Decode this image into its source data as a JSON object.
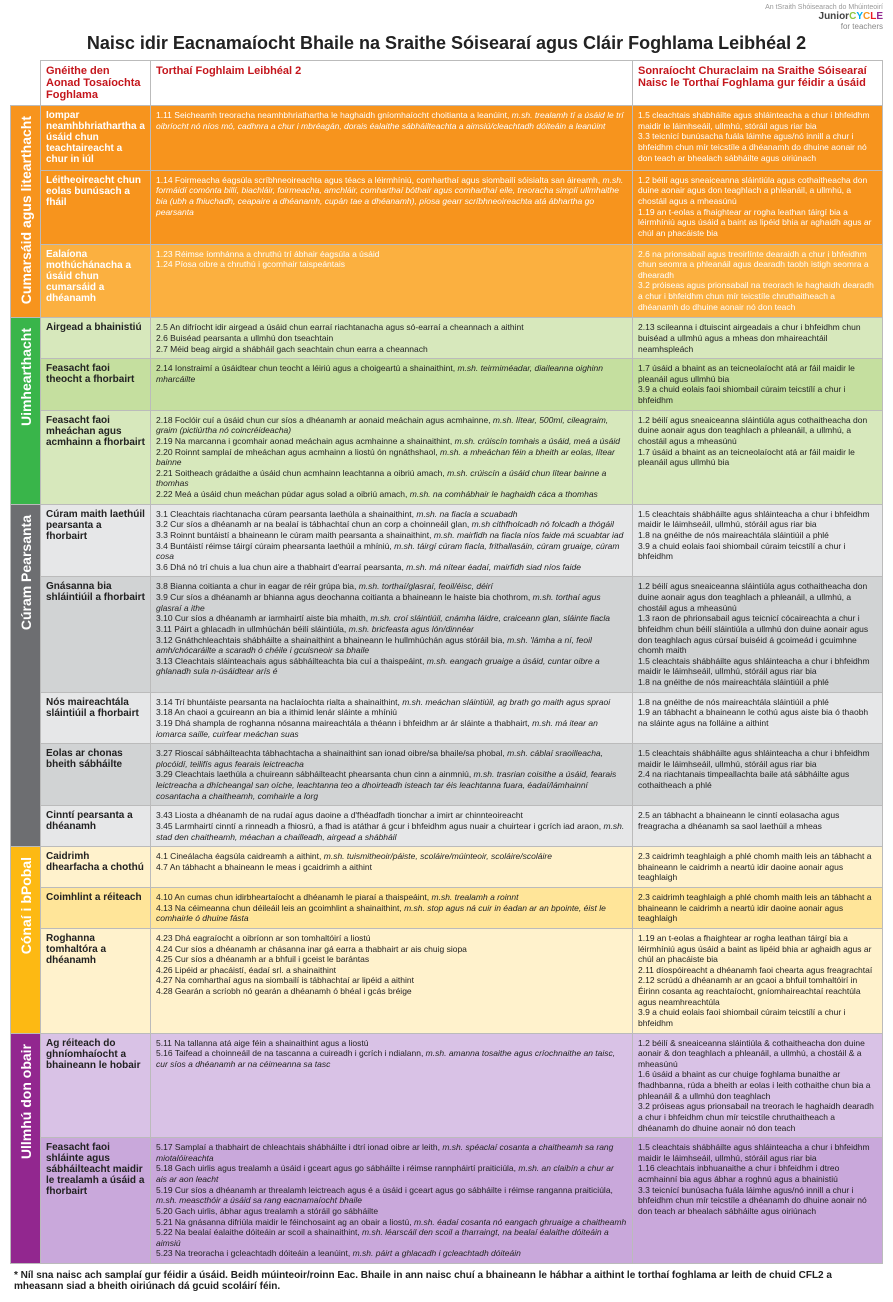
{
  "logo": {
    "top": "An tSraith Shóisearach do Mhúinteoirí",
    "brand": "JuniorCYCLE",
    "sub": "for teachers"
  },
  "title": "Naisc idir Eacnamaíocht Bhaile na Sraithe Sóisearaí agus Cláir Foghlama Leibhéal 2",
  "headers": {
    "gne": "Gnéithe den Aonad Tosaíochta Foghlama",
    "tf": "Torthaí Foghlaim Leibhéal 2",
    "son": "Sonraíocht Churaclaim na Sraithe Sóisearaí Naisc le Torthaí Foghlama gur féidir a úsáid"
  },
  "footnote": "* Níl sna naisc ach samplaí gur féidir a úsáid. Beidh múinteoir/roinn Eac. Bhaile in ann naisc chuí a bhaineann le hábhar a aithint le torthaí foghlama ar leith de chuid CFL2 a mheasann siad a bheith oiriúnach dá gcuid scoláirí féin.",
  "sections": [
    {
      "id": "s1",
      "label": "Cumarsáid agus litearthacht",
      "colors": {
        "side": "#f7941d",
        "rows": [
          "#f7941d",
          "#f7941d",
          "#fbb040"
        ],
        "text": "#ffffff"
      },
      "rows": [
        {
          "gne": "Iompar neamhbhriathartha a úsáid chun teachtaireacht a chur in iúl",
          "tf": "1.11 Seicheamh treoracha neamhbhriathartha le haghaidh gníomhaíocht choitianta a leanúint, <em>m.sh. trealamh tí a úsáid le trí oibríocht nó níos mó, cadhnra a chur i mbréagán, dorais éalaithe sábháilteachta a aimsiú/cleachtadh dóiteáin a leanúint</em>",
          "son": "1.5 cleachtais shábháilte agus shláinteacha a chur i bhfeidhm maidir le láimhseáil, ullmhú, stóráil agus riar bia\n3.3 teicnící bunúsacha fuála láimhe agus/nó innill a chur i bhfeidhm chun mír teicstíle a dhéanamh do dhuine aonair nó don teach ar bhealach sábháilte agus oiriúnach"
        },
        {
          "gne": "Léitheoireacht chun eolas bunúsach a fháil",
          "tf": "1.14 Foirmeacha éagsúla scríbhneoireachta agus téacs a léirmhíniú, comharthaí agus siombailí sóisialta san áireamh, <em>m.sh. formáidí comónta billí, biachláir, foirmeacha, amchláir, comharthaí bóthair agus comharthaí eile, treoracha simplí ullmhaithe bia (ubh a fhiuchadh, ceapaire a dhéanamh, cupán tae a dhéanamh), píosa gearr scríbhneoireachta atá ábhartha go pearsanta</em>",
          "son": "1.2 béilí agus sneaiceanna sláintiúla agus cothaitheacha don duine aonair agus don teaghlach a phleanáil, a ullmhú, a chostáil agus a mheasúnú\n1.19 an t-eolas a fhaightear ar rogha leathan táirgí bia a léirmhíniú agus úsáid a baint as lipéid bhia ar aghaidh agus ar chúl an phacáiste bia"
        },
        {
          "gne": "Ealaíona mothúchánacha a úsáid chun cumarsáid a dhéanamh",
          "tf": "1.23 Réimse íomhánna a chruthú trí ábhair éagsúla a úsáid\n1.24 Píosa oibre a chruthú i gcomhair taispeántais",
          "son": "2.6 na prionsabail agus treoirlínte dearaidh a chur i bhfeidhm chun seomra a phleanáil agus dearadh taobh istigh seomra a dhearadh\n3.2 próiseas agus prionsabail na treorach le haghaidh dearadh a chur i bhfeidhm chun mír teicstíle chruthaitheach a dhéanamh do dhuine aonair nó don teach"
        }
      ]
    },
    {
      "id": "s2",
      "label": "Uimhearthacht",
      "colors": {
        "side": "#39b54a",
        "rows": [
          "#d7e8bc",
          "#c5df9f",
          "#d7e8bc"
        ],
        "text": "#222222"
      },
      "rows": [
        {
          "gne": "Airgead a bhainistiú",
          "tf": "2.5 An difríocht idir airgead a úsáid chun earraí riachtanacha agus só-earraí a cheannach a aithint\n2.6 Buiséad pearsanta a ullmhú don tseachtain\n2.7 Méid beag airgid a shábháil gach seachtain chun earra a cheannach",
          "son": "2.13 scileanna i dtuiscint airgeadais a chur i bhfeidhm chun buiséad a ullmhú agus a mheas don mhaireachtáil neamhspleách"
        },
        {
          "gne": "Feasacht faoi theocht a fhorbairt",
          "tf": "2.14 Ionstraimí a úsáidtear chun teocht a léiriú agus a choigeartú a shainaithint, <em>m.sh. teirmiméadar, diaileanna oighinn mharcáilte</em>",
          "son": "1.7 úsáid a bhaint as an teicneolaíocht atá ar fáil maidir le pleanáil agus ullmhú bia\n3.9 a chuid eolais faoi shiombail cúraim teicstílí a chur i bhfeidhm"
        },
        {
          "gne": "Feasacht faoi mheáchan agus acmhainn a fhorbairt",
          "tf": "2.18 Foclóir cuí a úsáid chun cur síos a dhéanamh ar aonaid meáchain agus acmhainne, <em>m.sh. lítear, 500ml, cileagraim, graim (pictiúrtha nó coincréideacha)</em>\n2.19 Na marcanna i gcomhair aonad meáchain agus acmhainne a shainaithint, <em>m.sh. crúiscín tomhais a úsáid, meá a úsáid</em>\n2.20 Roinnt samplaí de mheáchan agus acmhainn a liostú ón ngnáthshaol, <em>m.sh. a mheáchan féin a bheith ar eolas, lítear bainne</em>\n2.21 Soitheach grádaithe a úsáid chun acmhainn leachtanna a oibriú amach, <em>m.sh. crúiscín a úsáid chun lítear bainne a thomhas</em>\n2.22 Meá a úsáid chun meáchan púdar agus solad a oibriú amach, <em>m.sh. na comhábhair le haghaidh cáca a thomhas</em>",
          "son": "1.2 béilí agus sneaiceanna sláintiúla agus cothaitheacha don duine aonair agus don teaghlach a phleanáil, a ullmhú, a chostáil agus a mheasúnú\n1.7 úsáid a bhaint as an teicneolaíocht atá ar fáil maidir le pleanáil agus ullmhú bia"
        }
      ]
    },
    {
      "id": "s3",
      "label": "Cúram Pearsanta",
      "colors": {
        "side": "#6d6e71",
        "rows": [
          "#e6e7e8",
          "#d1d3d4",
          "#e6e7e8",
          "#d1d3d4",
          "#e6e7e8"
        ],
        "text": "#222222"
      },
      "rows": [
        {
          "gne": "Cúram maith laethúil pearsanta a fhorbairt",
          "tf": "3.1 Cleachtais riachtanacha cúram pearsanta laethúla a shainaithint, <em>m.sh. na fiacla a scuabadh</em>\n3.2 Cur síos a dhéanamh ar na bealaí is tábhachtaí chun an corp a choinneáil glan, <em>m.sh cithfholcadh nó folcadh a thógáil</em>\n3.3 Roinnt buntáistí a bhaineann le cúram maith pearsanta a shainaithint, <em>m.sh. mairfidh na fiacla níos faide má scuabtar iad</em>\n3.4 Buntáistí réimse táirgí cúraim phearsanta laethúil a mhíniú, <em>m.sh. táirgí cúram fiacla, frithallasáin, cúram gruaige, cúram cosa</em>\n3.6 Dhá nó trí chuis a lua chun aire a thabhairt d'earraí pearsanta, <em>m.sh. má nítear éadaí, mairfidh siad níos faide</em>",
          "son": "1.5 cleachtais shábháilte agus shláinteacha a chur i bhfeidhm maidir le láimhseáil, ullmhú, stóráil agus riar bia\n1.8 na gnéithe de nós maireachtála sláintiúil a phlé\n3.9 a chuid eolais faoi shiombail cúraim teicstílí a chur i bhfeidhm"
        },
        {
          "gne": "Gnásanna bia shláintiúil a fhorbairt",
          "tf": "3.8 Bianna coitianta a chur in eagar de réir grúpa bia, <em>m.sh. torthaí/glasraí, feoil/éisc, déirí</em>\n3.9 Cur síos a dhéanamh ar bhianna agus deochanna coitianta a bhaineann le haiste bia chothrom, <em>m.sh. torthaí agus glasraí a ithe</em>\n3.10 Cur síos a dhéanamh ar iarmhairtí aiste bia mhaith, <em>m.sh. croí sláintiúil, cnámha láidre, craiceann glan, sláinte fiacla</em>\n3.11 Páirt a ghlacadh in ullmhúchán béilí sláintiúla, <em>m.sh. bricfeasta agus lón/dinnéar</em>\n3.12 Gnáthchleachtais shábháilte a shainaithint a bhaineann le hullmhúchán agus stóráil bia, <em>m.sh. 'lámha a ní, feoil amh/chócaráilte a scaradh ó chéile i gcuisneoir sa bhaile</em>\n3.13 Cleachtais sláinteachais agus sábháilteachta bia cuí a thaispeáint, <em>m.sh. eangach gruaige a úsáid, cuntar oibre a ghlanadh sula n-úsáidtear arís é</em>",
          "son": "1.2 béilí agus sneaiceanna sláintiúla agus cothaitheacha don duine aonair agus don teaghlach a phleanáil, a ullmhú, a chostáil agus a mheasúnú\n1.3 raon de phrionsabail agus teicnicí cócaireachta a chur i bhfeidhm chun béilí sláintiúla a ullmhú don duine aonair agus don teaghlach agus cúrsaí buiséid á gcoimeád i gcuimhne chomh maith\n1.5 cleachtais shábháilte agus shláinteacha a chur i bhfeidhm maidir le láimhseáil, ullmhú, stóráil agus riar bia\n1.8 na gnéithe de nós maireachtála sláintiúil a phlé"
        },
        {
          "gne": "Nós maireachtála sláintiúil a fhorbairt",
          "tf": "3.14 Trí bhuntáiste pearsanta na haclaíochta rialta a shainaithint, <em>m.sh. meáchan sláintiúil, ag brath go maith agus spraoi</em>\n3.18 An chaoi a gcuireann an bia a ithimid lenár sláinte a mhíniú\n3.19 Dhá shampla de roghanna nósanna maireachtála a théann i bhfeidhm ar ár sláinte a thabhairt, <em>m.sh. má itear an iomarca saille, cuirfear meáchan suas</em>",
          "son": "1.8 na gnéithe de nós maireachtála sláintiúil a phlé\n1.9 an tábhacht a bhaineann le cothú agus aiste bia ó thaobh na sláinte agus na folláine a aithint"
        },
        {
          "gne": "Eolas ar chonas bheith sábháilte",
          "tf": "3.27 Rioscaí sábháilteachta tábhachtacha a shainaithint san ionad oibre/sa bhaile/sa phobal, <em>m.sh. cáblaí sraoilleacha, plocóidí, teilifís agus fearais leictreacha</em>\n3.29 Cleachtais laethúla a chuireann sábháilteacht phearsanta chun cinn a ainmniú, <em>m.sh. trasrian coisithe a úsáid, fearais leictreacha a dhícheangal san oíche, leachtanna teo a dhoirteadh isteach tar éis leachtanna fuara, éadaí/lámhainní cosantacha a chaitheamh, comhairle a lorg</em>",
          "son": "1.5 cleachtais shábháilte agus shláinteacha a chur i bhfeidhm maidir le láimhseáil, ullmhú, stóráil agus riar bia\n2.4 na riachtanais timpeallachta baile atá sábháilte agus cothaitheach a phlé"
        },
        {
          "gne": "Cinntí pearsanta a dhéanamh",
          "tf": "3.43 Liosta a dhéanamh de na rudaí agus daoine a d'fhéadfadh tionchar a imirt ar chinnteoireacht\n3.45 Larmhairtí cinntí a rinneadh a fhiosrú, a fhad is atáthar á gcur i bhfeidhm agus nuair a chuirtear i gcrích iad araon, <em>m.sh. stad den chaitheamh, méachan a chailleadh, airgead a shábháil</em>",
          "son": "2.5 an tábhacht a bhaineann le cinntí eolasacha agus freagracha a dhéanamh sa saol laethúil a mheas"
        }
      ]
    },
    {
      "id": "s4",
      "label": "Cónaí i bPobal",
      "colors": {
        "side": "#fdb913",
        "rows": [
          "#fff2cc",
          "#ffe599",
          "#fff2cc"
        ],
        "text": "#222222"
      },
      "rows": [
        {
          "gne": "Caidrimh dhearfacha a chothú",
          "tf": "4.1 Cineálacha éagsúla caidreamh a aithint, <em>m.sh. tuismitheoir/páiste, scoláire/múinteoir, scoláire/scoláire</em>\n4.7 An tábhacht a bhaineann le meas i gcaidrimh a aithint",
          "son": "2.3 caidrimh teaghlaigh a phlé chomh maith leis an tábhacht a bhaineann le caidrimh a neartú idir daoine aonair agus teaghlaigh"
        },
        {
          "gne": "Coimhlint a réiteach",
          "tf": "4.10 An cumas chun idirbheartaíocht a dhéanamh le piaraí a thaispeáint, <em>m.sh. trealamh a roinnt</em>\n4.13 Na céimeanna chun déileáil leis an gcoimhlint a shainaithint, <em>m.sh. stop agus ná cuir in éadan ar an bpointe, éist le comhairle ó dhuine fásta</em>",
          "son": "2.3 caidrimh teaghlaigh a phlé chomh maith leis an tábhacht a bhaineann le caidrimh a neartú idir daoine aonair agus teaghlaigh"
        },
        {
          "gne": "Roghanna tomhaltóra a dhéanamh",
          "tf": "4.23 Dhá eagraíocht a oibríonn ar son tomhaltóirí a liostú\n4.24 Cur síos a dhéanamh ar chásanna inar gá earra a thabhairt ar ais chuig siopa\n4.25 Cur síos a dhéanamh ar a bhfuil i gceist le barántas\n4.26 Lipéid ar phacáistí, éadaí srl. a shainaithint\n4.27 Na comharthaí agus na siombailí is tábhachtaí ar lipéid a aithint\n4.28 Gearán a scríobh nó gearán a dhéanamh ó bhéal i gcás bréige",
          "son": "1.19 an t-eolas a fhaightear ar rogha leathan táirgí bia a léirmhíniú agus úsáid a baint as lipéid bhia ar aghaidh agus ar chúl an phacáiste bia\n2.11 díospóireacht a dhéanamh faoi chearta agus freagrachtaí\n2.12 scrúdú a dhéanamh ar an gcaoi a bhfuil tomhaltóirí in Éirinn cosanta ag reachtaíocht, gníomhaireachtaí reachtúla agus neamhreachtúla\n3.9 a chuid eolais faoi shiombail cúraim teicstílí a chur i bhfeidhm"
        }
      ]
    },
    {
      "id": "s5",
      "label": "Ullmhú don obair",
      "colors": {
        "side": "#92278f",
        "rows": [
          "#d9c2e6",
          "#c9a8db"
        ],
        "text": "#222222"
      },
      "rows": [
        {
          "gne": "Ag réiteach do ghníomhaíocht a bhaineann le hobair",
          "tf": "5.11 Na tallanna atá aige féin a shainaithint agus a liostú\n5.16 Taifead a choinneáil de na tascanna a cuireadh i gcrích i ndialann, <em>m.sh. amanna tosaithe agus críochnaithe an taisc, cur síos a dhéanamh ar na céimeanna sa tasc</em>",
          "son": "1.2 béilí & sneaiceanna sláintiúla & cothaitheacha don duine aonair & don teaghlach a phleanáil, a ullmhú, a chostáil & a mheasúnú\n1.6 úsáid a bhaint as cur chuige foghlama bunaithe ar fhadhbanna, rúda a bheith ar eolas i leith cothaithe chun bia a phleanáil & a ullmhú don teaghlach\n3.2 próiseas agus prionsabail na treorach le haghaidh dearadh a chur i bhfeidhm chun mír teicstíle chruthaitheach a dhéanamh do dhuine aonair nó don teach"
        },
        {
          "gne": "Feasacht faoi shláinte agus sábháilteacht maidir le trealamh a úsáid a fhorbairt",
          "tf": "5.17 Samplaí a thabhairt de chleachtais shábháilte i dtrí ionad oibre ar leith, <em>m.sh. spéaclaí cosanta a chaitheamh sa rang miotalóireachta</em>\n5.18 Gach uirlis agus trealamh a úsáid i gceart agus go sábháilte i réimse rannpháirtí praiticiúla, <em>m.sh. an claibín a chur ar ais ar aon leacht</em>\n5.19 Cur síos a dhéanamh ar threalamh leictreach agus é a úsáid i gceart agus go sábháilte i réimse ranganna praiticiúla, <em>m.sh. meascthóir a úsáid sa rang eacnamaíocht bhaile</em>\n5.20 Gach uirlis, ábhar agus trealamh a stóráil go sábháilte\n5.21 Na gnásanna difriúla maidir le féinchosaint ag an obair a liostú, <em>m.sh. éadaí cosanta nó eangach ghruaige a chaitheamh</em>\n5.22 Na bealaí éalaithe dóiteáin ar scoil a shainaithint, <em>m.sh. léarscáil den scoil a tharraingt, na bealaí éalaithe dóiteáin a aimsiú</em>\n5.23 Na treoracha i gcleachtadh dóiteáin a leanúint, <em>m.sh. páirt a ghlacadh i gcleachtadh dóiteáin</em>",
          "son": "1.5 cleachtais shábháilte agus shláinteacha a chur i bhfeidhm maidir le láimhseáil, ullmhú, stóráil agus riar bia\n1.16 cleachtais inbhuanaithe a chur i bhfeidhm i dtreo acmhainní bia agus ábhar a roghnú agus a bhainistiú\n3.3 teicnící bunúsacha fuála láimhe agus/nó innill a chur i bhfeidhm chun mír teicstíle a dhéanamh do dhuine aonair nó don teach ar bhealach sábháilte agus oiriúnach"
        }
      ]
    }
  ]
}
